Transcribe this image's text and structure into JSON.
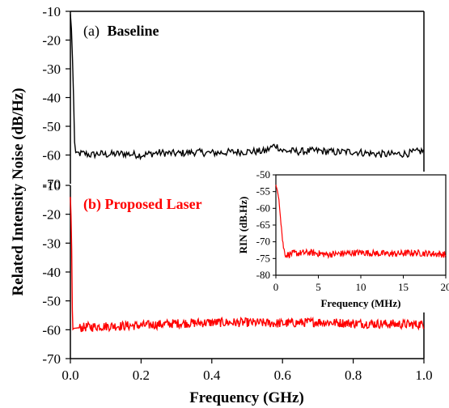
{
  "chart_data": [
    {
      "type": "line",
      "title": "(a) Baseline",
      "title_prefix": "(a)",
      "title_main": "Baseline",
      "xlabel": "",
      "ylabel": "Related Intensity Noise (dB/Hz)",
      "xlim": [
        0,
        1.0
      ],
      "ylim": [
        -70,
        -10
      ],
      "yticks": [
        -10,
        -20,
        -30,
        -40,
        -50,
        -60,
        -70
      ],
      "ytick_labels": [
        "-10",
        "-20",
        "-30",
        "-40",
        "-50",
        "-60",
        "-70"
      ],
      "series": [
        {
          "color": "#000000",
          "x": [
            0,
            0.004,
            0.008,
            0.012,
            0.016,
            0.02,
            0.04,
            0.06,
            0.08,
            0.1,
            0.15,
            0.2,
            0.25,
            0.3,
            0.35,
            0.4,
            0.45,
            0.5,
            0.55,
            0.58,
            0.6,
            0.65,
            0.7,
            0.75,
            0.8,
            0.85,
            0.9,
            0.95,
            1.0
          ],
          "y": [
            -11,
            -18,
            -35,
            -55,
            -61,
            -59.5,
            -59.5,
            -60,
            -59.5,
            -59.8,
            -59.5,
            -60,
            -59.2,
            -59.5,
            -59,
            -59.3,
            -59,
            -58.8,
            -58.7,
            -56.5,
            -58.5,
            -58.8,
            -58.5,
            -59,
            -58.8,
            -59.5,
            -59.8,
            -59.5,
            -58.5
          ]
        }
      ]
    },
    {
      "type": "line",
      "title": "(b) Proposed Laser",
      "xlabel": "Frequency (GHz)",
      "ylabel": "",
      "xlim": [
        0,
        1.0
      ],
      "ylim": [
        -70,
        -10
      ],
      "xticks": [
        0,
        0.2,
        0.4,
        0.6,
        0.8,
        1.0
      ],
      "xtick_labels": [
        "0.0",
        "0.2",
        "0.4",
        "0.6",
        "0.8",
        "1.0"
      ],
      "yticks": [
        -10,
        -20,
        -30,
        -40,
        -50,
        -60,
        -70
      ],
      "ytick_labels": [
        "-10",
        "-20",
        "-30",
        "-40",
        "-50",
        "-60",
        "-70"
      ],
      "series": [
        {
          "color": "#ff0000",
          "x": [
            0,
            0.003,
            0.006,
            0.01,
            0.05,
            0.1,
            0.2,
            0.3,
            0.4,
            0.5,
            0.6,
            0.7,
            0.8,
            0.9,
            1.0
          ],
          "y": [
            -14,
            -25,
            -60,
            -59.5,
            -59,
            -58.8,
            -58.5,
            -57.8,
            -57.5,
            -57.5,
            -57.8,
            -57.3,
            -57.8,
            -58,
            -58.2
          ]
        }
      ]
    },
    {
      "type": "line",
      "title": "",
      "xlabel": "Frequency (MHz)",
      "ylabel": "RIN (dB.Hz)",
      "xlim": [
        0,
        20
      ],
      "ylim": [
        -80,
        -50
      ],
      "xticks": [
        0,
        5,
        10,
        15,
        20
      ],
      "xtick_labels": [
        "0",
        "5",
        "10",
        "15",
        "20"
      ],
      "yticks": [
        -50,
        -55,
        -60,
        -65,
        -70,
        -75,
        -80
      ],
      "ytick_labels": [
        "-50",
        "-55",
        "-60",
        "-65",
        "-70",
        "-75",
        "-80"
      ],
      "series": [
        {
          "color": "#ff0000",
          "x": [
            0,
            0.2,
            0.4,
            0.6,
            0.8,
            1.0,
            1.2,
            2,
            4,
            6,
            8,
            10,
            12,
            14,
            16,
            18,
            20
          ],
          "y": [
            -53,
            -55,
            -58,
            -64,
            -70,
            -73,
            -74,
            -73.5,
            -73.2,
            -73.8,
            -73.5,
            -73.2,
            -73.5,
            -73.6,
            -73.3,
            -73.5,
            -73.8
          ]
        }
      ]
    }
  ]
}
